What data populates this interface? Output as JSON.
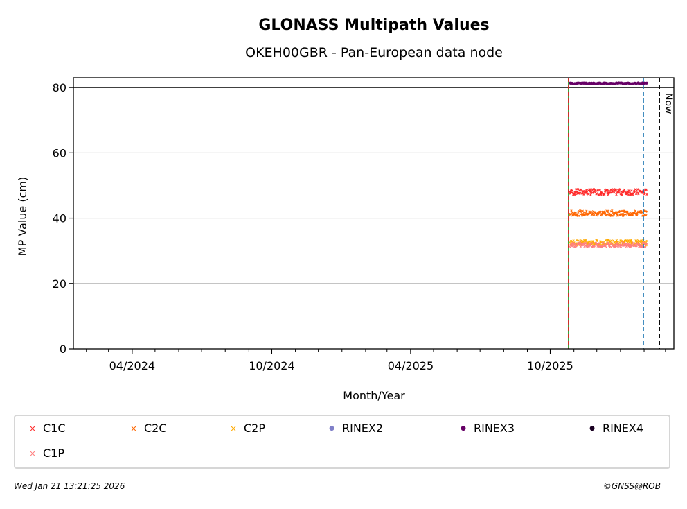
{
  "chart_data": {
    "type": "scatter",
    "title": "GLONASS Multipath Values",
    "subtitle": "OKEH00GBR - Pan-European data node",
    "xlabel": "Month/Year",
    "ylabel": "MP Value (cm)",
    "x_ticks": [
      "04/2024",
      "10/2024",
      "04/2025",
      "10/2025"
    ],
    "y_ticks": [
      0,
      20,
      40,
      60,
      80
    ],
    "ylim": [
      0,
      83
    ],
    "xlim": [
      "2024-01-15",
      "2026-03-12"
    ],
    "grid": true,
    "threshold_line": 80,
    "vertical_markers": [
      {
        "x": "2025-10-25",
        "style": "solid",
        "color": "#2ca02c",
        "label": ""
      },
      {
        "x": "2025-10-25",
        "style": "dashed",
        "color": "#d62728",
        "label": ""
      },
      {
        "x": "2026-01-31",
        "style": "dashed",
        "color": "#1f77b4",
        "label": ""
      },
      {
        "x": "2026-02-21",
        "style": "dashed",
        "color": "#000000",
        "label": "Now"
      }
    ],
    "x_range_start": "2025-10-25",
    "x_range_end": "2026-02-01",
    "series": [
      {
        "name": "C1C",
        "marker": "x",
        "color": "#ff2a2a",
        "mean": 48,
        "spread": 0.9
      },
      {
        "name": "C2C",
        "marker": "x",
        "color": "#ff6600",
        "mean": 41.5,
        "spread": 0.8
      },
      {
        "name": "C2P",
        "marker": "x",
        "color": "#ffaa00",
        "mean": 32.5,
        "spread": 0.8
      },
      {
        "name": "RINEX2",
        "marker": "dot",
        "color": "#7f7fc8",
        "mean": null,
        "spread": 0
      },
      {
        "name": "RINEX3",
        "marker": "dot",
        "color": "#660066",
        "mean": 81.3,
        "spread": 0.15
      },
      {
        "name": "RINEX4",
        "marker": "dot",
        "color": "#1a0022",
        "mean": null,
        "spread": 0
      },
      {
        "name": "C1P",
        "marker": "x",
        "color": "#ff7f7f",
        "mean": 31.8,
        "spread": 0.7
      }
    ]
  },
  "footer": {
    "timestamp": "Wed Jan 21 13:21:25 2026",
    "credit": "©GNSS@ROB"
  }
}
